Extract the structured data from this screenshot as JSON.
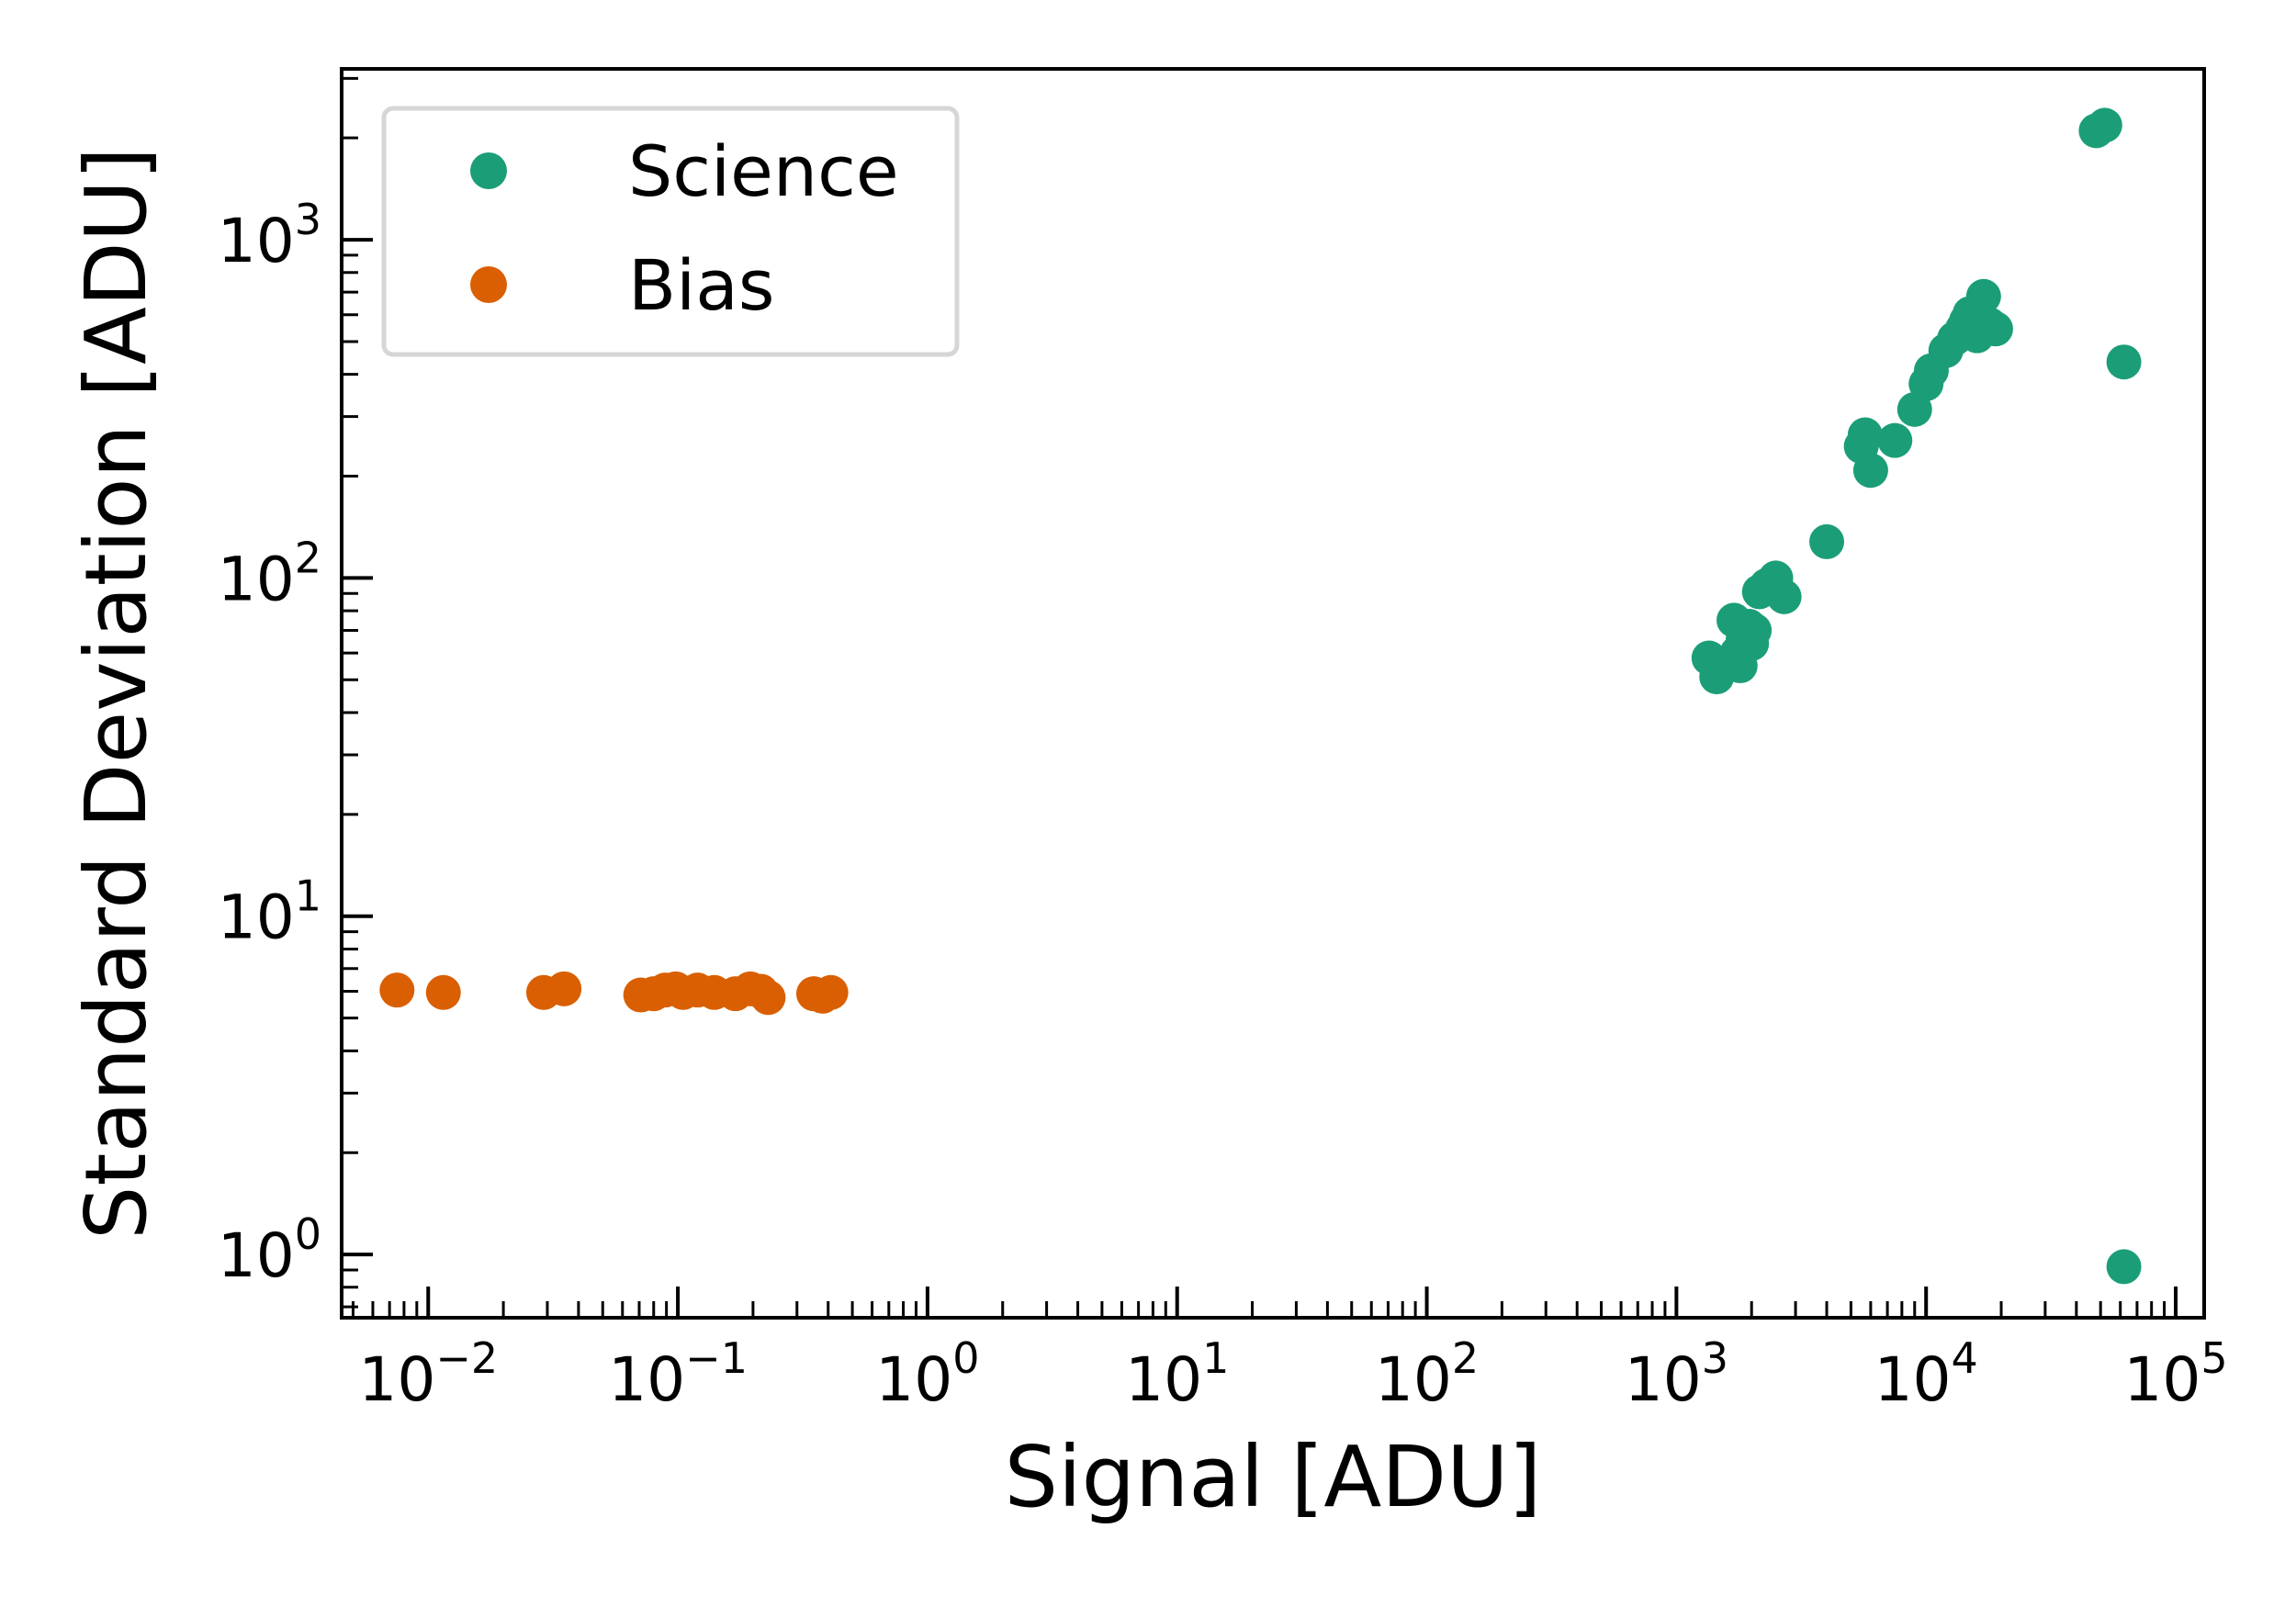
{
  "chart_data": {
    "type": "scatter",
    "xlabel": "Signal [ADU]",
    "ylabel": "Standard Deviation [ADU]",
    "xscale": "log",
    "yscale": "log",
    "xlim": [
      0.0045,
      130000
    ],
    "ylim": [
      0.65,
      3200
    ],
    "x_ticks": [
      {
        "base": "10",
        "exp": "−2",
        "value": 0.01
      },
      {
        "base": "10",
        "exp": "−1",
        "value": 0.1
      },
      {
        "base": "10",
        "exp": "0",
        "value": 1
      },
      {
        "base": "10",
        "exp": "1",
        "value": 10
      },
      {
        "base": "10",
        "exp": "2",
        "value": 100
      },
      {
        "base": "10",
        "exp": "3",
        "value": 1000
      },
      {
        "base": "10",
        "exp": "4",
        "value": 10000
      },
      {
        "base": "10",
        "exp": "5",
        "value": 100000
      }
    ],
    "y_ticks": [
      {
        "base": "10",
        "exp": "0",
        "value": 1
      },
      {
        "base": "10",
        "exp": "1",
        "value": 10
      },
      {
        "base": "10",
        "exp": "2",
        "value": 100
      },
      {
        "base": "10",
        "exp": "3",
        "value": 1000
      }
    ],
    "grid": false,
    "legend_position": "top-left",
    "series": [
      {
        "name": "Science",
        "color": "#1b9e77",
        "x": [
          1350,
          1450,
          1700,
          1750,
          1800,
          1850,
          1900,
          1950,
          2000,
          2050,
          2150,
          2300,
          2500,
          2700,
          4000,
          5500,
          5700,
          6000,
          7500,
          9000,
          10000,
          10500,
          12000,
          13000,
          14000,
          14500,
          15000,
          16000,
          17000,
          18000,
          19000,
          48000,
          52000,
          62000,
          62000
        ],
        "y": [
          58,
          51,
          75,
          60,
          55,
          66,
          63,
          72,
          64,
          70,
          91,
          95,
          100,
          88,
          128,
          245,
          265,
          208,
          255,
          315,
          375,
          410,
          470,
          510,
          545,
          575,
          605,
          520,
          680,
          560,
          545,
          2100,
          2180,
          435,
          0.92
        ]
      },
      {
        "name": "Bias",
        "color": "#d95f02",
        "x": [
          0.0075,
          0.0115,
          0.029,
          0.035,
          0.071,
          0.08,
          0.089,
          0.098,
          0.105,
          0.12,
          0.14,
          0.17,
          0.195,
          0.215,
          0.23,
          0.35,
          0.38,
          0.41
        ],
        "y": [
          6.05,
          5.95,
          5.95,
          6.1,
          5.85,
          5.9,
          6.05,
          6.1,
          5.95,
          6.05,
          5.95,
          5.9,
          6.1,
          6.0,
          5.75,
          5.9,
          5.8,
          5.95
        ]
      }
    ]
  }
}
